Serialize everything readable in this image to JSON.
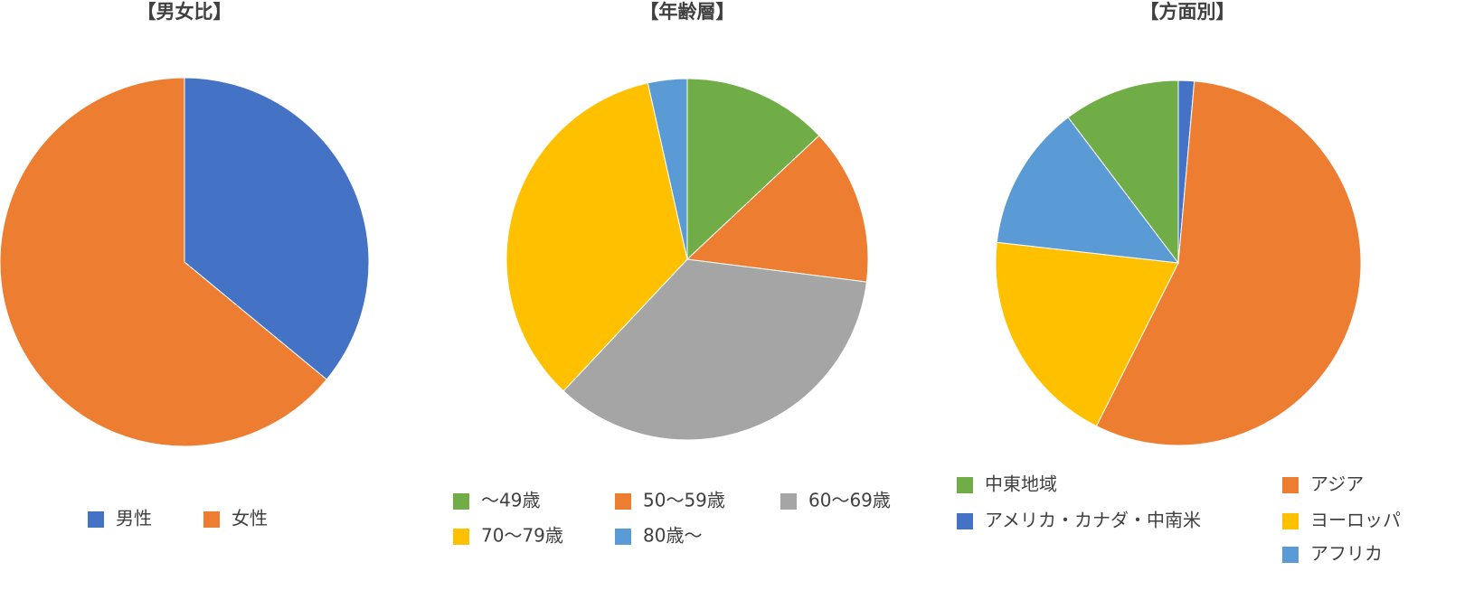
{
  "chart_data": [
    {
      "type": "pie",
      "title": "【男女比】",
      "categories": [
        "男性",
        "女性"
      ],
      "values": [
        36,
        64
      ],
      "colors": [
        "#4472c4",
        "#ed7d31"
      ]
    },
    {
      "type": "pie",
      "title": "【年齢層】",
      "categories": [
        "～49歳",
        "50～59歳",
        "60～69歳",
        "70～79歳",
        "80歳～"
      ],
      "values": [
        13,
        14,
        35,
        34.5,
        3.5
      ],
      "colors": [
        "#70ad47",
        "#ed7d31",
        "#a5a5a5",
        "#ffc000",
        "#5b9bd5"
      ]
    },
    {
      "type": "pie",
      "title": "【方面別】",
      "categories": [
        "アメリカ・カナダ・中南米",
        "アジア",
        "ヨーロッパ",
        "アフリカ",
        "中東地域"
      ],
      "values": [
        1.4,
        56,
        19.4,
        12.9,
        10.3
      ],
      "colors": [
        "#4472c4",
        "#ed7d31",
        "#ffc000",
        "#5b9bd5",
        "#70ad47"
      ]
    }
  ]
}
